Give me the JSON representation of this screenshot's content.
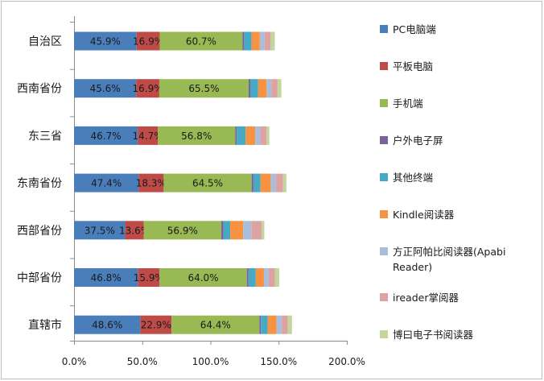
{
  "chart_data": {
    "type": "bar",
    "orientation": "horizontal",
    "stacked": true,
    "categories": [
      "自治区",
      "西南省份",
      "东三省",
      "东南省份",
      "西部省份",
      "中部省份",
      "直辖市"
    ],
    "series": [
      {
        "name": "PC电脑端",
        "color": "#4A7EBB",
        "values": [
          45.9,
          45.6,
          46.7,
          47.4,
          37.5,
          46.8,
          48.6
        ],
        "labels": [
          "45.9%",
          "45.6%",
          "46.7%",
          "47.4%",
          "37.5%",
          "46.8%",
          "48.6%"
        ]
      },
      {
        "name": "平板电脑",
        "color": "#BE4B48",
        "values": [
          16.9,
          16.9,
          14.7,
          18.3,
          13.6,
          15.9,
          22.9
        ],
        "labels": [
          "16.9%",
          "16.9%",
          "14.7%",
          "18.3%",
          "13.6%",
          "15.9%",
          "22.9%"
        ]
      },
      {
        "name": "手机端",
        "color": "#98B954",
        "values": [
          60.7,
          65.5,
          56.8,
          64.5,
          56.9,
          64.0,
          64.4
        ],
        "labels": [
          "60.7%",
          "65.5%",
          "56.8%",
          "64.5%",
          "56.9%",
          "64.0%",
          "64.4%"
        ]
      },
      {
        "name": "户外电子屏",
        "color": "#7D60A0",
        "values": [
          1.2,
          1.2,
          1.1,
          1.3,
          1.5,
          1.2,
          1.1
        ]
      },
      {
        "name": "其他终端",
        "color": "#46AAC5",
        "values": [
          5.5,
          5.8,
          6.5,
          5.2,
          5.0,
          5.3,
          5.0
        ]
      },
      {
        "name": "Kindle阅读器",
        "color": "#F69240",
        "values": [
          6.0,
          6.2,
          7.0,
          7.5,
          9.5,
          6.0,
          6.5
        ]
      },
      {
        "name": "方正阿帕比阅读器(Apabi Reader)",
        "color": "#A9BEDD",
        "values": [
          3.5,
          3.5,
          3.8,
          3.8,
          6.0,
          3.5,
          3.8
        ]
      },
      {
        "name": "ireader掌阅器",
        "color": "#DDA3A2",
        "values": [
          4.5,
          4.5,
          4.6,
          5.2,
          7.5,
          4.5,
          4.5
        ]
      },
      {
        "name": "博曰电子书阅读器",
        "color": "#C3D69B",
        "values": [
          3.0,
          2.8,
          2.0,
          2.5,
          2.0,
          3.2,
          3.0
        ]
      }
    ],
    "x_ticks": [
      "0.0%",
      "50.0%",
      "100.0%",
      "150.0%",
      "200.0%"
    ],
    "xlim": [
      0,
      200
    ],
    "grid": false,
    "legend_position": "right"
  }
}
